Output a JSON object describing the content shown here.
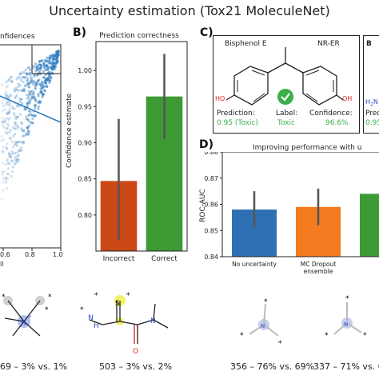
{
  "title": "Uncertainty estimation (Tox21 MoleculeNet)",
  "panel_a": {
    "legend_fragment": "nfidences",
    "x_ticks": [
      "0.6",
      "0.8",
      "1.0"
    ],
    "x_label_fragment": "ll"
  },
  "panel_b": {
    "letter": "B)",
    "subtitle": "Prediction correctness",
    "ylabel": "Confidence estimate"
  },
  "panel_c": {
    "letter": "C)",
    "molecule_name": "Bisphenol E",
    "assay": "NR-ER",
    "prediction_label": "Prediction:",
    "prediction_value": "0.95 (Toxic)",
    "label_label": "Label:",
    "label_value": "Toxic",
    "confidence_label": "Confidence:",
    "confidence_value": "96.6%",
    "hydroxyl_left": "HO",
    "hydroxyl_right": "OH",
    "right_fragment_top": "B",
    "right_fragment_amine": "H2N",
    "right_fragment_pred": "Predic",
    "right_fragment_val": "0.95",
    "status_color": "#3bb04a"
  },
  "panel_d": {
    "letter": "D)",
    "subtitle": "Improving performance with u",
    "ylabel": "ROC-AUC"
  },
  "bottom_molecules": [
    {
      "caption": "69 – 3% vs. 1%"
    },
    {
      "caption": "503 – 3% vs. 2%"
    },
    {
      "caption": "356 – 76% vs. 69%"
    },
    {
      "caption": "337 – 71% vs. 6"
    }
  ],
  "colors": {
    "incorrect": "#cc4716",
    "correct": "#3e9a35",
    "blue_bar": "#2f6fb4",
    "orange_bar": "#f47b1f",
    "green_bar": "#3e9a35",
    "scatter": "#2f7cc1"
  },
  "chart_data": [
    {
      "type": "scatter",
      "title": "",
      "xticks": [
        "0.6",
        "0.8",
        "1.0"
      ],
      "xlim": [
        0.5,
        1.0
      ],
      "ylim": [
        0.5,
        1.0
      ],
      "note": "partially visible scatter with fitted line"
    },
    {
      "type": "bar",
      "title": "Prediction correctness",
      "categories": [
        "Incorrect",
        "Correct"
      ],
      "values": [
        0.847,
        0.964
      ],
      "error_low": [
        0.765,
        0.905
      ],
      "error_high": [
        0.933,
        1.023
      ],
      "ylabel": "Confidence estimate",
      "ylim": [
        0.75,
        1.04
      ],
      "yticks": [
        0.8,
        0.85,
        0.9,
        0.95,
        1.0
      ]
    },
    {
      "type": "bar",
      "title": "Improving performance with u",
      "categories": [
        "No uncertainty",
        "MC Dropout\nensemble",
        ""
      ],
      "values": [
        0.858,
        0.859,
        0.864
      ],
      "error_low": [
        0.851,
        0.852,
        null
      ],
      "error_high": [
        0.865,
        0.866,
        null
      ],
      "ylabel": "ROC-AUC",
      "ylim": [
        0.84,
        0.88
      ],
      "yticks": [
        0.84,
        0.85,
        0.86,
        0.87,
        0.88
      ]
    }
  ]
}
